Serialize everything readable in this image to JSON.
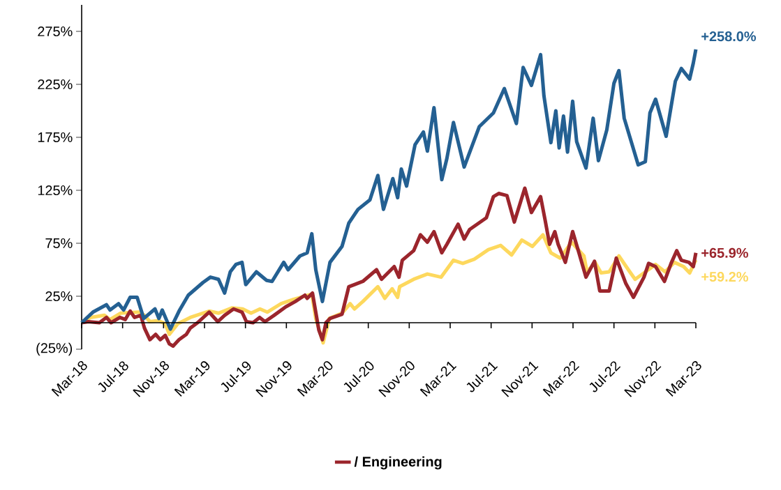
{
  "chart_data": {
    "type": "line",
    "xlim": [
      "2018-03",
      "2023-03"
    ],
    "ylim": [
      -25,
      300
    ],
    "xticks": [
      {
        "value": "2018-03",
        "label": "Mar-18"
      },
      {
        "value": "2018-07",
        "label": "Jul-18"
      },
      {
        "value": "2018-11",
        "label": "Nov-18"
      },
      {
        "value": "2019-03",
        "label": "Mar-19"
      },
      {
        "value": "2019-07",
        "label": "Jul-19"
      },
      {
        "value": "2019-11",
        "label": "Nov-19"
      },
      {
        "value": "2020-03",
        "label": "Mar-20"
      },
      {
        "value": "2020-07",
        "label": "Jul-20"
      },
      {
        "value": "2020-11",
        "label": "Nov-20"
      },
      {
        "value": "2021-03",
        "label": "Mar-21"
      },
      {
        "value": "2021-07",
        "label": "Jul-21"
      },
      {
        "value": "2021-11",
        "label": "Nov-21"
      },
      {
        "value": "2022-03",
        "label": "Mar-22"
      },
      {
        "value": "2022-07",
        "label": "Jul-22"
      },
      {
        "value": "2022-11",
        "label": "Nov-22"
      },
      {
        "value": "2023-03",
        "label": "Mar-23"
      }
    ],
    "yticks": [
      {
        "value": -25,
        "label": "(25%)"
      },
      {
        "value": 25,
        "label": "25%"
      },
      {
        "value": 75,
        "label": "75%"
      },
      {
        "value": 125,
        "label": "125%"
      },
      {
        "value": 175,
        "label": "175%"
      },
      {
        "value": 225,
        "label": "225%"
      },
      {
        "value": 275,
        "label": "275%"
      }
    ],
    "legend": "bottom",
    "marker": "none",
    "line_style": "solid",
    "grid": false,
    "series": [
      {
        "color": "#fdd85d",
        "x": [
          "2018-03-01",
          "2018-03-28",
          "2018-05-08",
          "2018-05-25",
          "2018-06-25",
          "2018-08-20",
          "2018-09-05",
          "2018-09-21",
          "2018-10-16",
          "2018-11-06",
          "2018-11-18",
          "2018-12-13",
          "2019-01-20",
          "2019-03-15",
          "2019-04-12",
          "2019-05-23",
          "2019-06-23",
          "2019-07-18",
          "2019-08-14",
          "2019-09-05",
          "2019-10-16",
          "2019-11-21",
          "2020-01-16",
          "2020-01-28",
          "2020-02-18",
          "2020-03-07",
          "2020-04-14",
          "2020-05-08",
          "2020-05-21",
          "2020-06-15",
          "2020-07-30",
          "2020-08-20",
          "2020-09-11",
          "2020-09-27",
          "2020-10-03",
          "2020-11-14",
          "2020-12-25",
          "2021-02-04",
          "2021-03-11",
          "2021-04-08",
          "2021-05-12",
          "2021-06-23",
          "2021-07-30",
          "2021-09-01",
          "2021-10-01",
          "2021-11-02",
          "2021-12-03",
          "2021-12-27",
          "2022-01-24",
          "2022-02-25",
          "2022-04-03",
          "2022-04-12",
          "2022-05-06",
          "2022-05-24",
          "2022-06-17",
          "2022-07-16",
          "2022-08-18",
          "2022-09-03",
          "2022-09-29",
          "2022-11-03",
          "2022-12-01",
          "2022-12-29",
          "2023-01-26",
          "2023-02-12",
          "2023-03-01"
        ],
        "values": [
          0,
          5,
          7,
          3,
          9,
          10,
          7,
          1,
          2,
          -1,
          -11,
          -1,
          5,
          11,
          9,
          14,
          13,
          9,
          13,
          10,
          18,
          22,
          27,
          4,
          -19,
          4,
          9,
          18,
          13,
          20,
          34,
          23,
          32,
          24,
          34,
          41,
          46,
          43,
          59,
          56,
          60,
          69,
          73,
          64,
          78,
          72,
          83,
          66,
          61,
          76,
          63,
          48,
          57,
          47,
          48,
          63,
          48,
          41,
          47,
          55,
          48,
          57,
          53,
          47,
          59.2
        ]
      },
      {
        "name": "/ Engineering",
        "color": "#9b252c",
        "x": [
          "2018-03-01",
          "2018-03-21",
          "2018-04-23",
          "2018-05-14",
          "2018-05-28",
          "2018-06-23",
          "2018-07-09",
          "2018-07-24",
          "2018-08-06",
          "2018-08-25",
          "2018-09-05",
          "2018-09-21",
          "2018-10-08",
          "2018-10-22",
          "2018-11-06",
          "2018-11-18",
          "2018-11-29",
          "2018-12-17",
          "2019-01-08",
          "2019-01-20",
          "2019-02-10",
          "2019-03-15",
          "2019-04-10",
          "2019-04-30",
          "2019-05-27",
          "2019-06-21",
          "2019-07-04",
          "2019-07-24",
          "2019-08-13",
          "2019-08-29",
          "2019-09-25",
          "2019-10-30",
          "2019-11-27",
          "2019-12-26",
          "2020-01-02",
          "2020-01-18",
          "2020-02-06",
          "2020-02-16",
          "2020-02-26",
          "2020-03-09",
          "2020-04-14",
          "2020-05-04",
          "2020-06-15",
          "2020-07-26",
          "2020-08-10",
          "2020-09-17",
          "2020-10-01",
          "2020-10-11",
          "2020-11-14",
          "2020-12-04",
          "2020-12-25",
          "2021-01-14",
          "2021-02-06",
          "2021-02-20",
          "2021-03-25",
          "2021-04-12",
          "2021-04-28",
          "2021-06-17",
          "2021-07-08",
          "2021-07-24",
          "2021-08-18",
          "2021-09-09",
          "2021-10-10",
          "2021-10-30",
          "2021-11-26",
          "2021-12-10",
          "2021-12-23",
          "2022-01-08",
          "2022-01-18",
          "2022-02-08",
          "2022-02-28",
          "2022-03-19",
          "2022-04-09",
          "2022-05-04",
          "2022-05-20",
          "2022-06-17",
          "2022-07-08",
          "2022-08-06",
          "2022-08-29",
          "2022-09-29",
          "2022-10-13",
          "2022-11-03",
          "2022-11-29",
          "2022-12-19",
          "2023-01-05",
          "2023-01-19",
          "2023-02-10",
          "2023-02-22",
          "2023-03-01"
        ],
        "values": [
          0,
          1,
          0,
          5,
          0,
          5,
          3,
          11,
          5,
          7,
          -5,
          -16,
          -11,
          -16,
          -12,
          -20,
          -22,
          -16,
          -11,
          -5,
          0,
          10,
          1,
          7,
          13,
          10,
          1,
          0,
          5,
          1,
          7,
          15,
          20,
          26,
          23,
          28,
          -7,
          -16,
          0,
          4,
          8,
          34,
          39,
          50,
          41,
          53,
          43,
          59,
          68,
          83,
          76,
          86,
          66,
          74,
          93,
          79,
          88,
          99,
          119,
          122,
          120,
          95,
          127,
          104,
          119,
          96,
          74,
          86,
          74,
          57,
          86,
          66,
          43,
          58,
          30,
          30,
          61,
          37,
          24,
          43,
          56,
          53,
          39,
          56,
          68,
          59,
          57,
          53,
          65.9
        ]
      },
      {
        "color": "#246092",
        "x": [
          "2018-03-01",
          "2018-04-04",
          "2018-05-14",
          "2018-05-25",
          "2018-06-19",
          "2018-07-04",
          "2018-07-24",
          "2018-08-14",
          "2018-09-03",
          "2018-10-06",
          "2018-10-18",
          "2018-10-28",
          "2018-11-21",
          "2018-12-17",
          "2019-01-14",
          "2019-02-25",
          "2019-03-19",
          "2019-04-12",
          "2019-04-30",
          "2019-05-17",
          "2019-06-03",
          "2019-06-21",
          "2019-07-02",
          "2019-08-03",
          "2019-09-03",
          "2019-09-19",
          "2019-10-24",
          "2019-11-06",
          "2019-12-11",
          "2020-01-02",
          "2020-01-16",
          "2020-01-28",
          "2020-02-16",
          "2020-03-09",
          "2020-04-14",
          "2020-05-04",
          "2020-06-01",
          "2020-07-06",
          "2020-07-30",
          "2020-08-16",
          "2020-09-13",
          "2020-09-27",
          "2020-10-08",
          "2020-10-24",
          "2020-11-18",
          "2020-12-13",
          "2020-12-25",
          "2021-01-14",
          "2021-02-06",
          "2021-02-20",
          "2021-03-11",
          "2021-04-12",
          "2021-05-27",
          "2021-07-08",
          "2021-08-10",
          "2021-09-15",
          "2021-10-05",
          "2021-10-30",
          "2021-11-26",
          "2021-12-06",
          "2021-12-27",
          "2022-01-11",
          "2022-01-21",
          "2022-02-03",
          "2022-02-14",
          "2022-02-28",
          "2022-03-12",
          "2022-04-09",
          "2022-04-30",
          "2022-05-16",
          "2022-06-10",
          "2022-07-01",
          "2022-07-16",
          "2022-08-01",
          "2022-09-12",
          "2022-10-03",
          "2022-10-17",
          "2022-11-03",
          "2022-12-04",
          "2023-01-01",
          "2023-01-19",
          "2023-02-12",
          "2023-02-22",
          "2023-03-01"
        ],
        "values": [
          0,
          10,
          17,
          12,
          18,
          12,
          24,
          24,
          4,
          13,
          4,
          12,
          -6,
          11,
          26,
          38,
          43,
          41,
          28,
          48,
          55,
          57,
          36,
          48,
          40,
          39,
          57,
          50,
          63,
          66,
          84,
          50,
          20,
          57,
          72,
          94,
          107,
          116,
          139,
          107,
          136,
          118,
          145,
          129,
          168,
          180,
          162,
          203,
          135,
          155,
          189,
          147,
          185,
          198,
          221,
          188,
          241,
          224,
          253,
          214,
          170,
          200,
          165,
          195,
          161,
          209,
          171,
          146,
          193,
          153,
          182,
          226,
          238,
          193,
          149,
          152,
          198,
          211,
          176,
          228,
          240,
          230,
          245,
          258
        ]
      }
    ],
    "annotations": [
      {
        "text": "+258.0%",
        "x": "2023-03-01",
        "y": 258
      },
      {
        "text": "+65.9%",
        "x": "2023-03-01",
        "y": 65.9
      },
      {
        "text": "+59.2%",
        "x": "2023-03-01",
        "y": 59.2
      }
    ]
  }
}
